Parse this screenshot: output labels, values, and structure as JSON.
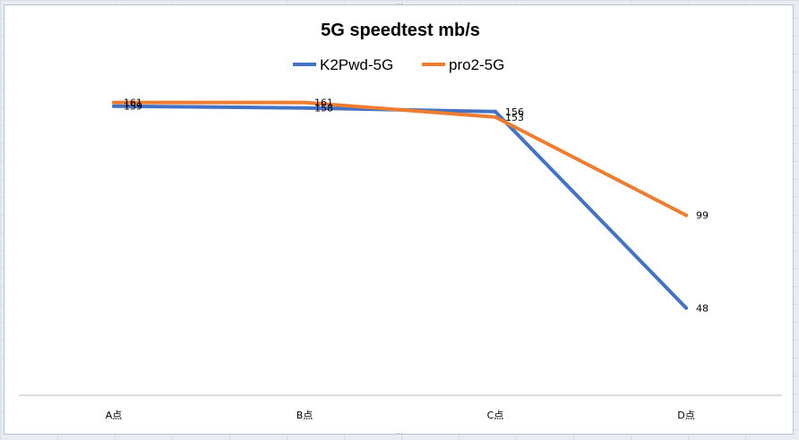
{
  "chart_data": {
    "type": "line",
    "title": "5G speedtest mb/s",
    "categories": [
      "A点",
      "B点",
      "C点",
      "D点"
    ],
    "series": [
      {
        "name": "K2Pwd-5G",
        "color": "#4472c4",
        "values": [
          159,
          158,
          156,
          48
        ]
      },
      {
        "name": "pro2-5G",
        "color": "#ed7d31",
        "values": [
          161,
          161,
          153,
          99
        ]
      }
    ],
    "ylim": [
      0,
      180
    ],
    "grid": false,
    "legend_position": "top"
  }
}
